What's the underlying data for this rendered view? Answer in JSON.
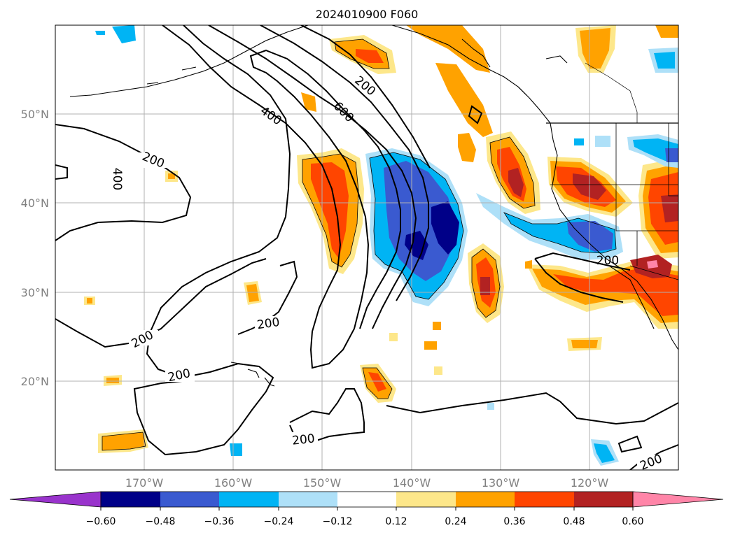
{
  "title": "2024010900 F060",
  "map": {
    "lon_labels": [
      "170°W",
      "160°W",
      "150°W",
      "140°W",
      "130°W",
      "120°W"
    ],
    "lat_labels": [
      "50°N",
      "40°N",
      "30°N",
      "20°N"
    ],
    "contour_labels": [
      "200",
      "400",
      "600",
      "200",
      "400",
      "200",
      "200",
      "200",
      "200",
      "200",
      "200"
    ]
  },
  "colorbar": {
    "tick_labels": [
      "−0.60",
      "−0.48",
      "−0.36",
      "−0.24",
      "−0.12",
      "0.12",
      "0.24",
      "0.36",
      "0.48",
      "0.60"
    ],
    "colors": [
      "#9933cc",
      "#000088",
      "#3a5ad0",
      "#00b4f4",
      "#aee0f8",
      "#ffffff",
      "#fde78a",
      "#ffa200",
      "#ff4500",
      "#b22222",
      "#ff85a8"
    ]
  },
  "colors": {
    "neg_light": "#aee0f8",
    "neg_mid": "#00b4f4",
    "neg_strong": "#3a5ad0",
    "neg_max": "#000088",
    "pos_light": "#fde78a",
    "pos_mid": "#ffa200",
    "pos_strong": "#ff4500",
    "pos_max": "#b22222",
    "pos_extreme": "#ff85a8"
  }
}
